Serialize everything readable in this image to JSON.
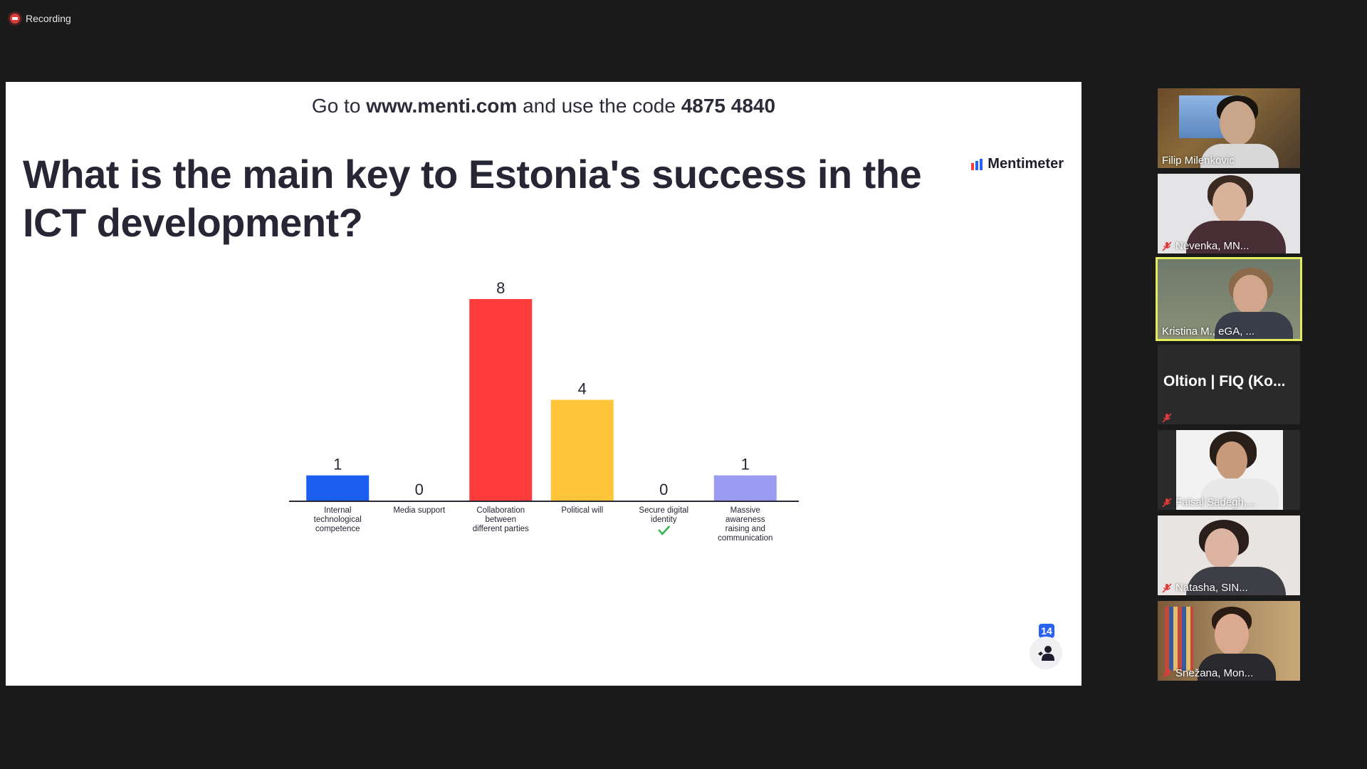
{
  "recording": {
    "label": "Recording"
  },
  "slide": {
    "banner": {
      "prefix": "Go to",
      "url": "www.menti.com",
      "middle": "and use the code",
      "code": "4875 4840"
    },
    "brand": "Mentimeter",
    "question": "What is the main key to Estonia's success in the ICT development?",
    "response_count": "14"
  },
  "chart_data": {
    "type": "bar",
    "categories": [
      [
        "Internal",
        "technological",
        "competence"
      ],
      [
        "Media support"
      ],
      [
        "Collaboration",
        "between",
        "different parties"
      ],
      [
        "Political will"
      ],
      [
        "Secure digital",
        "identity"
      ],
      [
        "Massive",
        "awareness",
        "raising and",
        "communication"
      ]
    ],
    "values": [
      1,
      0,
      8,
      4,
      0,
      1
    ],
    "value_labels": [
      "1",
      "0",
      "8",
      "4",
      "0",
      "1"
    ],
    "colors": [
      "#1a5ef0",
      "#1a5ef0",
      "#ff3c3c",
      "#ffc53a",
      "#2fb34a",
      "#9b9bf2"
    ],
    "correct_index": 4,
    "ylim": [
      0,
      8
    ],
    "grid": false
  },
  "participants": [
    {
      "name": "Filip Milenkovic",
      "muted": false,
      "video": true
    },
    {
      "name": "Nevenka, MN...",
      "muted": true,
      "video": true
    },
    {
      "name": "Kristina M., eGA, ...",
      "muted": false,
      "video": true,
      "active": true
    },
    {
      "name": "Oltion | FIQ (Ko...",
      "muted": true,
      "video": false
    },
    {
      "name": "Faisal Sadegh,...",
      "muted": true,
      "video": true
    },
    {
      "name": "Natasha, SIN...",
      "muted": true,
      "video": true
    },
    {
      "name": "Snežana, Mon...",
      "muted": true,
      "video": true
    }
  ],
  "colors": {
    "active_speaker": "#e3ec58",
    "badge": "#2a62f0",
    "recording": "#d93c3c"
  }
}
